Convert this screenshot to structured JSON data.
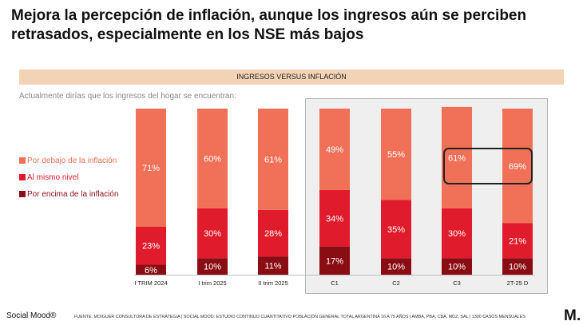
{
  "title": "Mejora la percepción de inflación, aunque los ingresos aún se perciben retrasados, especialmente en los NSE más bajos",
  "banner": "INGRESOS VERSUS INFLACIÓN",
  "question": "Actualmente dirías que los ingresos del hogar se encuentran:",
  "chart_data": {
    "type": "bar",
    "stacked": true,
    "orientation": "vertical",
    "categories": [
      "I TRIM 2024",
      "I trim 2025",
      "II trim 2025",
      "C1",
      "C2",
      "C3",
      "2T-25 D"
    ],
    "series": [
      {
        "name": "Por encima de la inflación",
        "color": "#8b0d14",
        "values": [
          6,
          10,
          11,
          17,
          10,
          10,
          10
        ]
      },
      {
        "name": "Al mismo nivel",
        "color": "#e01c2c",
        "values": [
          23,
          30,
          28,
          34,
          35,
          30,
          21
        ]
      },
      {
        "name": "Por debajo de la inflación",
        "color": "#f07158",
        "values": [
          71,
          60,
          61,
          49,
          55,
          61,
          69
        ]
      }
    ],
    "legend_order": [
      "Por debajo de la inflación",
      "Al mismo nivel",
      "Por encima de la inflación"
    ],
    "value_format": "{v}%",
    "ylim": [
      0,
      100
    ],
    "highlighted_categories": [
      "C3",
      "2T-25 D"
    ],
    "highlighted_series": "Por debajo de la inflación",
    "grouped_panel_categories": [
      "C1",
      "C2",
      "C3",
      "2T-25 D"
    ]
  },
  "footer": {
    "brand": "Social Mood®",
    "source": "FUENTE: MOIGUER CONSULTORA DE ESTRATEGIA | SOCIAL MOOD: ESTUDIO CONTINUO CUANTITATIVO POBLACIÓN GENERAL TOTAL ARGENTINA 16 A 75 AÑOS | AMBA, PBA, CBA, MDZ, SAL | 1300 CASOS MENSUALES",
    "logo": "M."
  }
}
